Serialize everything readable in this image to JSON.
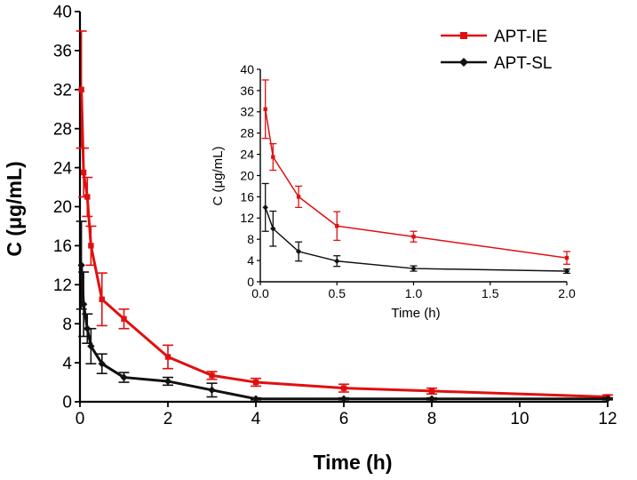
{
  "chart_data": [
    {
      "id": "main",
      "type": "line",
      "title": "",
      "xlabel": "Time (h)",
      "ylabel": "C (μg/mL)",
      "xlim": [
        0,
        12
      ],
      "ylim": [
        0,
        40
      ],
      "xticks": [
        0,
        2,
        4,
        6,
        8,
        10,
        12
      ],
      "yticks": [
        0,
        4,
        8,
        12,
        16,
        20,
        24,
        28,
        32,
        36,
        40
      ],
      "grid": false,
      "legend_position": "top-right",
      "series": [
        {
          "name": "APT-IE",
          "color": "#e01010",
          "marker": "square",
          "x": [
            0.033,
            0.083,
            0.167,
            0.25,
            0.5,
            1,
            2,
            3,
            4,
            6,
            8,
            12
          ],
          "y": [
            32,
            23.5,
            21,
            16,
            10.5,
            8.5,
            4.6,
            2.7,
            2.0,
            1.4,
            1.1,
            0.5
          ],
          "err": [
            6,
            2.5,
            2,
            2,
            2.7,
            1,
            1.2,
            0.4,
            0.4,
            0.4,
            0.3,
            0.2
          ]
        },
        {
          "name": "APT-SL",
          "color": "#111111",
          "marker": "diamond",
          "x": [
            0.033,
            0.083,
            0.167,
            0.25,
            0.5,
            1,
            2,
            3,
            4,
            6,
            8,
            12
          ],
          "y": [
            14,
            10,
            7.5,
            5.7,
            3.9,
            2.5,
            2.1,
            1.2,
            0.3,
            0.3,
            0.3,
            0.3
          ],
          "err": [
            4.5,
            3.3,
            1.5,
            1.8,
            1.0,
            0.5,
            0.4,
            0.7,
            0.1,
            0.1,
            0.1,
            0.1
          ]
        }
      ]
    },
    {
      "id": "inset",
      "type": "line",
      "title": "",
      "xlabel": "Time (h)",
      "ylabel": "C (μg/mL)",
      "xlim": [
        0,
        2
      ],
      "ylim": [
        0,
        40
      ],
      "xticks": [
        "0.0",
        "0.5",
        "1.0",
        "1.5",
        "2.0"
      ],
      "yticks": [
        0,
        4,
        8,
        12,
        16,
        20,
        24,
        28,
        32,
        36,
        40
      ],
      "grid": false,
      "series": [
        {
          "name": "APT-IE",
          "color": "#e01010",
          "marker": "square",
          "x": [
            0.033,
            0.083,
            0.25,
            0.5,
            1,
            2
          ],
          "y": [
            32.5,
            23.5,
            16,
            10.5,
            8.5,
            4.5
          ],
          "err": [
            5.5,
            2.5,
            2,
            2.7,
            1,
            1.2
          ]
        },
        {
          "name": "APT-SL",
          "color": "#111111",
          "marker": "diamond",
          "x": [
            0.033,
            0.083,
            0.25,
            0.5,
            1,
            2
          ],
          "y": [
            14,
            10,
            5.7,
            3.9,
            2.5,
            2.0
          ],
          "err": [
            4.5,
            3.3,
            1.8,
            1.0,
            0.5,
            0.4
          ]
        }
      ]
    }
  ]
}
